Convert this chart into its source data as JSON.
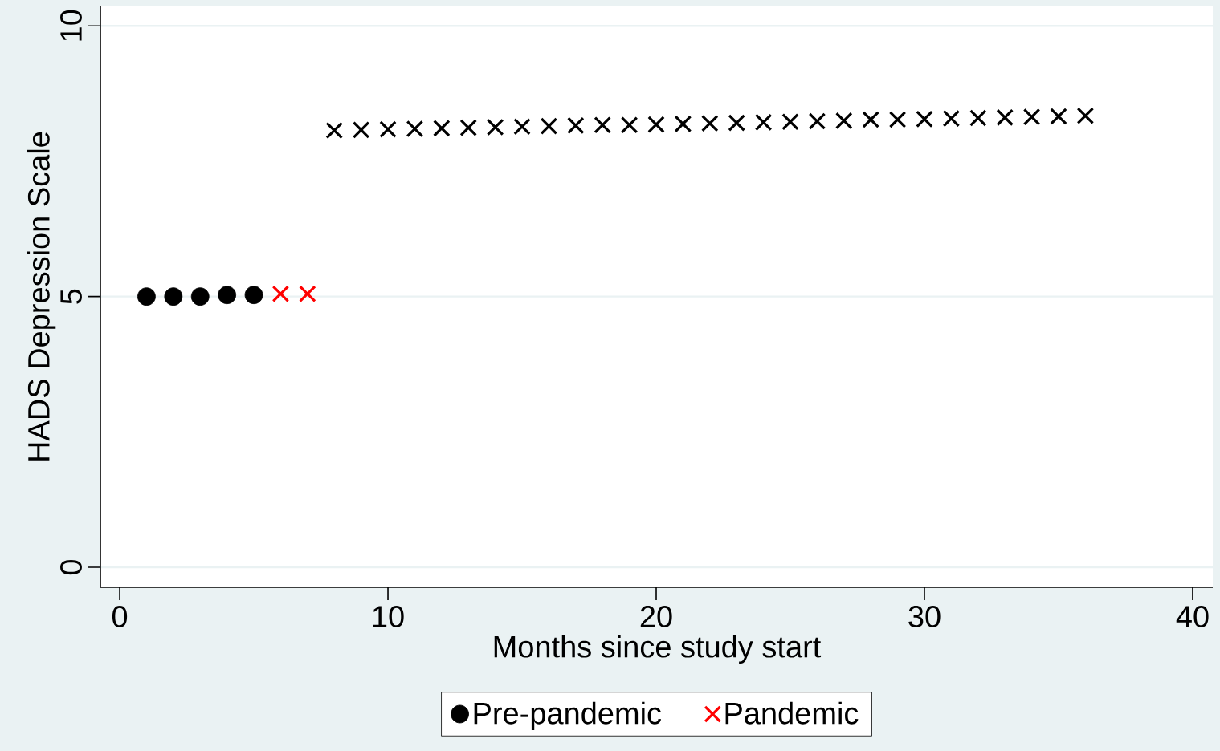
{
  "chart_data": {
    "type": "scatter",
    "xlabel": "Months since study start",
    "ylabel": "HADS Depression Scale",
    "xlim": [
      -0.72,
      40.75
    ],
    "ylim": [
      -0.37,
      10.36
    ],
    "xticks": [
      0,
      10,
      20,
      30,
      40
    ],
    "yticks": [
      0,
      5,
      10
    ],
    "grid": "y",
    "legend": "bottom",
    "series": [
      {
        "name": "Pre-pandemic",
        "color": "#000000",
        "marker": "circle",
        "x": [
          1,
          2,
          3,
          4,
          5
        ],
        "values": [
          5.0,
          5.0,
          5.0,
          5.03,
          5.03
        ]
      },
      {
        "name": "Pandemic",
        "color": "#ff0000",
        "marker": "cross",
        "x": [
          6,
          7
        ],
        "values": [
          5.05,
          5.05
        ]
      },
      {
        "color": "#000000",
        "marker": "cross",
        "x": [
          8,
          9,
          10,
          11,
          12,
          13,
          14,
          15,
          16,
          17,
          18,
          19,
          20,
          21,
          22,
          23,
          24,
          25,
          26,
          27,
          28,
          29,
          30,
          31,
          32,
          33,
          34,
          35,
          36
        ],
        "values": [
          8.07,
          8.08,
          8.09,
          8.1,
          8.11,
          8.12,
          8.13,
          8.14,
          8.15,
          8.16,
          8.17,
          8.17,
          8.18,
          8.19,
          8.2,
          8.21,
          8.22,
          8.23,
          8.24,
          8.25,
          8.27,
          8.27,
          8.28,
          8.29,
          8.3,
          8.31,
          8.32,
          8.33,
          8.34
        ]
      }
    ]
  }
}
